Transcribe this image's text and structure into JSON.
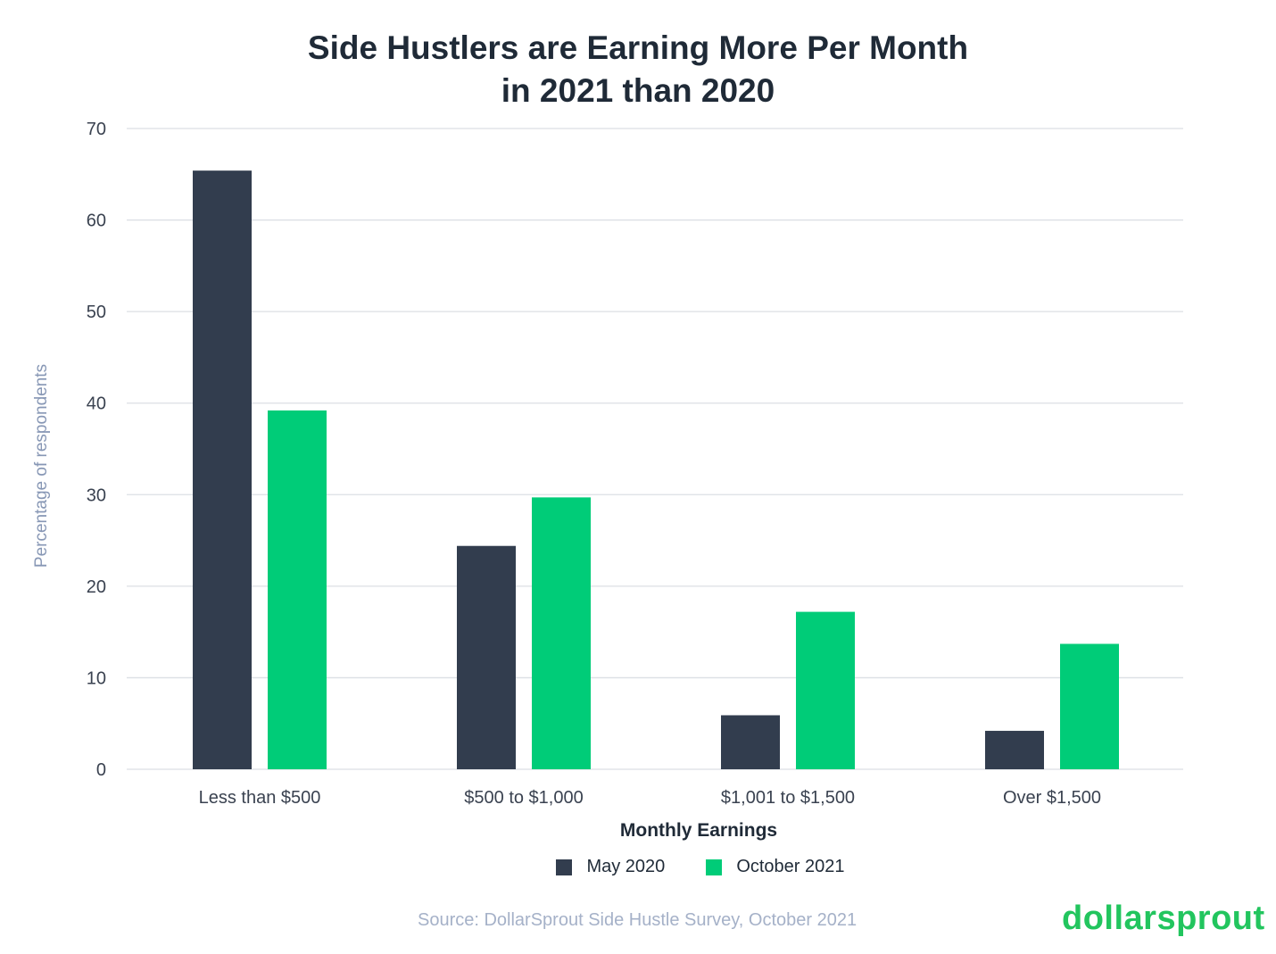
{
  "chart_data": {
    "type": "bar",
    "title_line1": "Side Hustlers are Earning More Per Month",
    "title_line2": "in 2021 than 2020",
    "xlabel": "Monthly Earnings",
    "ylabel": "Percentage of respondents",
    "categories": [
      "Less than $500",
      "$500 to $1,000",
      "$1,001 to $1,500",
      "Over $1,500"
    ],
    "series": [
      {
        "name": "May 2020",
        "color": "#323d4e",
        "values": [
          65.4,
          24.4,
          5.9,
          4.2
        ]
      },
      {
        "name": "October 2021",
        "color": "#00cc78",
        "values": [
          39.2,
          29.7,
          17.2,
          13.7
        ]
      }
    ],
    "ylim": [
      0,
      70
    ],
    "yticks": [
      0,
      10,
      20,
      30,
      40,
      50,
      60,
      70
    ],
    "grid": true,
    "legend": "bottom-center"
  },
  "source": "Source: DollarSprout Side Hustle Survey, October 2021",
  "logo": "dollarsprout"
}
